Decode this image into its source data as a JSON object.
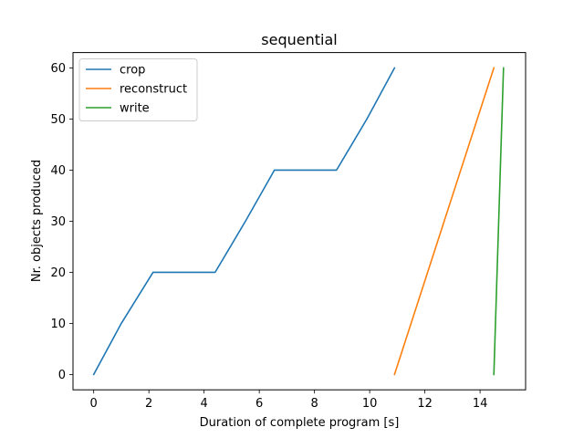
{
  "chart_data": {
    "type": "line",
    "title": "sequential",
    "xlabel": "Duration of complete program [s]",
    "ylabel": "Nr. objects produced",
    "xlim": [
      -0.75,
      15.65
    ],
    "ylim": [
      -3,
      63
    ],
    "xticks": [
      0,
      2,
      4,
      6,
      8,
      10,
      12,
      14
    ],
    "yticks": [
      0,
      10,
      20,
      30,
      40,
      50,
      60
    ],
    "grid": false,
    "legend_position": "top-left",
    "series": [
      {
        "name": "crop",
        "color": "#1f77b4",
        "x": [
          0,
          1.0,
          2.15,
          4.4,
          5.5,
          6.55,
          8.8,
          9.9,
          10.9
        ],
        "y": [
          0,
          10,
          20,
          20,
          30,
          40,
          40,
          50,
          60
        ]
      },
      {
        "name": "reconstruct",
        "color": "#ff7f0e",
        "x": [
          10.9,
          14.5
        ],
        "y": [
          0,
          60
        ]
      },
      {
        "name": "write",
        "color": "#2ca02c",
        "x": [
          14.5,
          14.85
        ],
        "y": [
          0,
          60
        ]
      }
    ]
  }
}
